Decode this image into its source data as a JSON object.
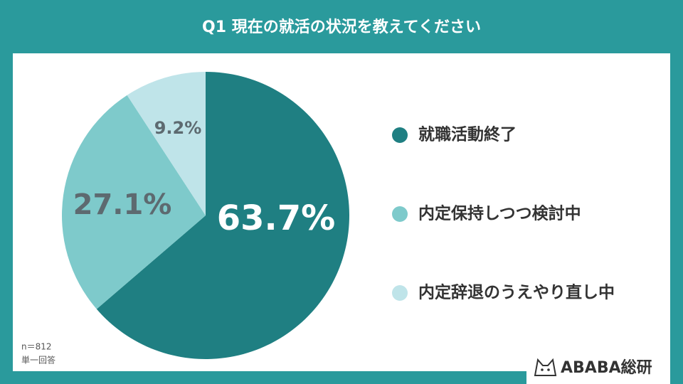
{
  "chart_data": {
    "type": "pie",
    "title": "Q1  現在の就活の状況を教えてください",
    "categories": [
      "就職活動終了",
      "内定保持しつつ検討中",
      "内定辞退のうえやり直し中"
    ],
    "values": [
      63.7,
      27.1,
      9.2
    ],
    "value_labels": [
      "63.7%",
      "27.1%",
      "9.2%"
    ],
    "colors": [
      "#1f7f82",
      "#7ecacb",
      "#bfe4e9"
    ],
    "notes": [
      "n＝812",
      "単一回答"
    ],
    "brand": "ABABA総研"
  }
}
